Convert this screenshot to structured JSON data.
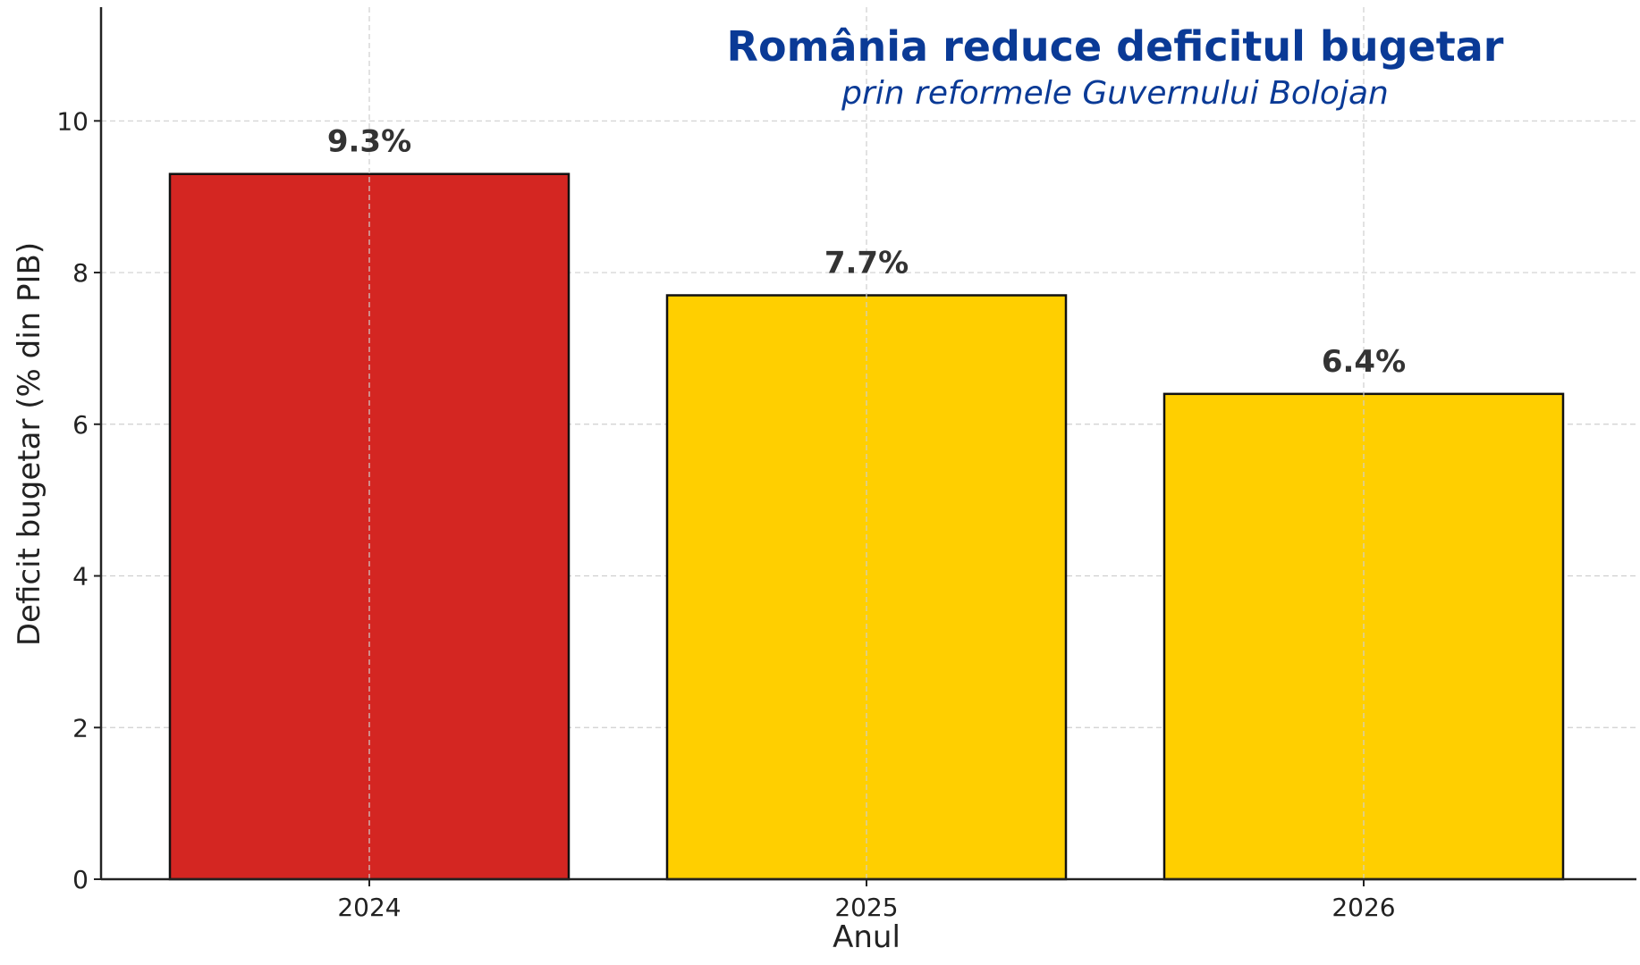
{
  "colors": {
    "title": "#0a3a96",
    "bar_highlight": "#d42622",
    "bar_default": "#ffcf00",
    "bar_edge": "#111111",
    "grid": "#cfcfcf",
    "axis": "#222222",
    "text": "#222222"
  },
  "chart_data": {
    "type": "bar",
    "title": "România reduce deficitul bugetar",
    "subtitle": "prin reformele Guvernului Bolojan",
    "xlabel": "Anul",
    "ylabel": "Deficit bugetar (% din PIB)",
    "categories": [
      "2024",
      "2025",
      "2026"
    ],
    "values": [
      9.3,
      7.7,
      6.4
    ],
    "data_labels": [
      "9.3%",
      "7.7%",
      "6.4%"
    ],
    "bar_colors": [
      "#d42622",
      "#ffcf00",
      "#ffcf00"
    ],
    "ylim": [
      0,
      11.5
    ],
    "yticks": [
      0,
      2,
      4,
      6,
      8,
      10
    ],
    "ytick_labels": [
      "0",
      "2",
      "4",
      "6",
      "8",
      "10"
    ],
    "grid": true,
    "legend": "none"
  }
}
